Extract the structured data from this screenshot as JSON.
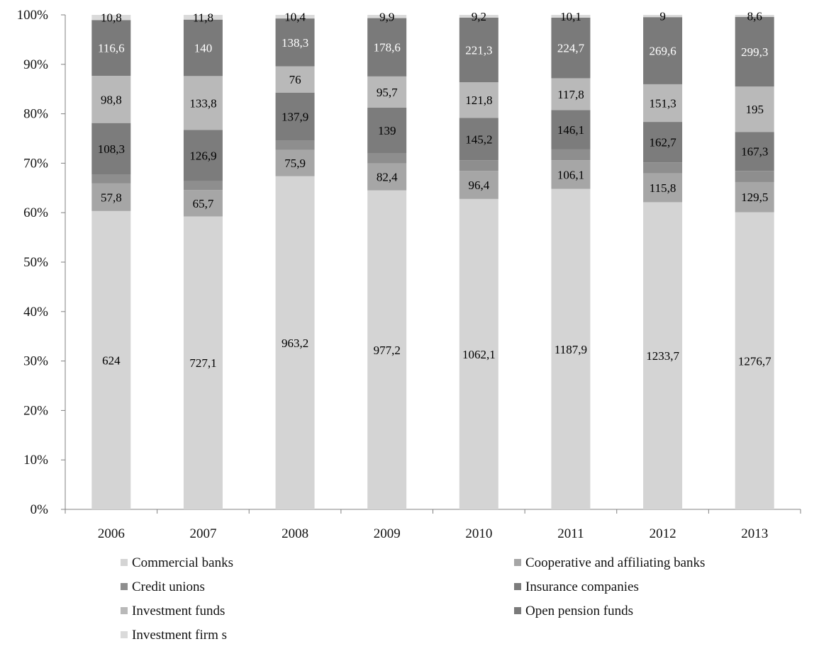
{
  "chart_data": {
    "type": "bar",
    "stacked": true,
    "normalized": true,
    "categories": [
      "2006",
      "2007",
      "2008",
      "2009",
      "2010",
      "2011",
      "2012",
      "2013"
    ],
    "y_ticks": [
      "0%",
      "10%",
      "20%",
      "30%",
      "40%",
      "50%",
      "60%",
      "70%",
      "80%",
      "90%",
      "100%"
    ],
    "ylim": [
      0,
      100
    ],
    "grid": false,
    "legend_position": "bottom",
    "series": [
      {
        "name": "Commercial banks",
        "color": "#d4d4d4",
        "label_color": "#000000",
        "values": [
          624,
          727.1,
          963.2,
          977.2,
          1062.1,
          1187.9,
          1233.7,
          1276.7
        ],
        "labels": [
          "624",
          "727,1",
          "963,2",
          "977,2",
          "1062,1",
          "1187,9",
          "1233,7",
          "1276,7"
        ]
      },
      {
        "name": "Cooperative and affiliating banks",
        "color": "#a6a6a6",
        "label_color": "#000000",
        "values": [
          57.8,
          65.7,
          75.9,
          82.4,
          96.4,
          106.1,
          115.8,
          129.5
        ],
        "labels": [
          "57,8",
          "65,7",
          "75,9",
          "82,4",
          "96,4",
          "106,1",
          "115,8",
          "129,5"
        ]
      },
      {
        "name": "Credit unions",
        "color": "#8e8e8e",
        "label_color": "#000000",
        "values": [
          18,
          22,
          28,
          32,
          36,
          40,
          44,
          48
        ],
        "labels": []
      },
      {
        "name": "Insurance companies",
        "color": "#7c7c7c",
        "label_color": "#000000",
        "values": [
          108.3,
          126.9,
          137.9,
          139,
          145.2,
          146.1,
          162.7,
          167.3
        ],
        "labels": [
          "108,3",
          "126,9",
          "137,9",
          "139",
          "145,2",
          "146,1",
          "162,7",
          "167,3"
        ]
      },
      {
        "name": "Investment funds",
        "color": "#b9b9b9",
        "label_color": "#000000",
        "values": [
          98.8,
          133.8,
          76,
          95.7,
          121.8,
          117.8,
          151.3,
          195
        ],
        "labels": [
          "98,8",
          "133,8",
          "76",
          "95,7",
          "121,8",
          "117,8",
          "151,3",
          "195"
        ]
      },
      {
        "name": "Open pension funds",
        "color": "#7a7a7a",
        "label_color": "#ffffff",
        "values": [
          116.6,
          140,
          138.3,
          178.6,
          221.3,
          224.7,
          269.6,
          299.3
        ],
        "labels": [
          "116,6",
          "140",
          "138,3",
          "178,6",
          "221,3",
          "224,7",
          "269,6",
          "299,3"
        ]
      },
      {
        "name": "Investment firm s",
        "color": "#dadada",
        "label_color": "#000000",
        "values": [
          10.8,
          11.8,
          10.4,
          9.9,
          9.2,
          10.1,
          9,
          8.6
        ],
        "labels": [
          "10,8",
          "11,8",
          "10,4",
          "9,9",
          "9,2",
          "10,1",
          "9",
          "8,6"
        ]
      }
    ]
  }
}
